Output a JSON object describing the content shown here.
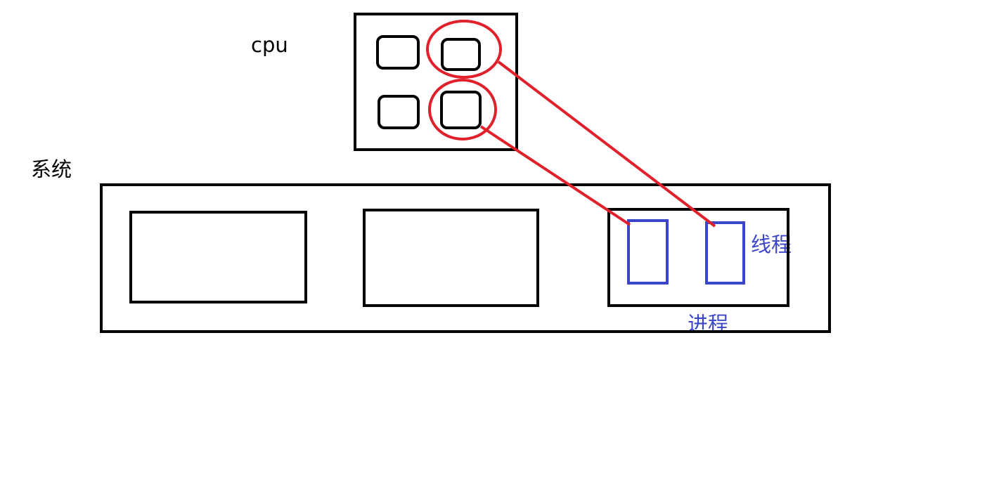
{
  "labels": {
    "cpu": "cpu",
    "system": "系统",
    "thread": "线程",
    "process": "进程"
  },
  "colors": {
    "background": "#ffffff",
    "outline": "#000000",
    "highlight": "#e0202a",
    "thread": "#3c46c8"
  }
}
